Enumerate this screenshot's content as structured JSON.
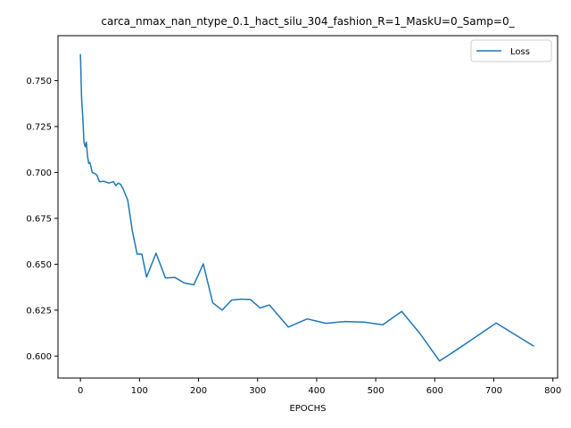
{
  "chart_data": {
    "type": "line",
    "title": "carca_nmax_nan_ntype_0.1_hact_silu_304_fashion_R=1_MaskU=0_Samp=0_",
    "xlabel": "EPOCHS",
    "ylabel": "",
    "xlim": [
      -38,
      808
    ],
    "ylim": [
      0.588,
      0.7745
    ],
    "xticks": [
      0,
      100,
      200,
      300,
      400,
      500,
      600,
      700,
      800
    ],
    "yticks": [
      0.6,
      0.625,
      0.65,
      0.675,
      0.7,
      0.725,
      0.75
    ],
    "ytick_labels": [
      "0.600",
      "0.625",
      "0.650",
      "0.675",
      "0.700",
      "0.725",
      "0.750"
    ],
    "grid": false,
    "legend_position": "upper right",
    "colors": {
      "series": "#1f77b4",
      "axis": "#000000",
      "legend_border": "#cccccc"
    },
    "series": [
      {
        "name": "Loss",
        "x": [
          0,
          1,
          2,
          4,
          6,
          8,
          10,
          12,
          14,
          16,
          20,
          24,
          28,
          32,
          40,
          48,
          56,
          60,
          64,
          68,
          72,
          80,
          88,
          96,
          104,
          112,
          128,
          144,
          160,
          176,
          192,
          208,
          224,
          240,
          256,
          272,
          288,
          304,
          320,
          352,
          384,
          416,
          448,
          480,
          512,
          544,
          576,
          608,
          640,
          672,
          704,
          768
        ],
        "values": [
          0.7645,
          0.752,
          0.74,
          0.73,
          0.7165,
          0.714,
          0.7165,
          0.709,
          0.705,
          0.7055,
          0.7,
          0.6995,
          0.6985,
          0.695,
          0.6952,
          0.6942,
          0.695,
          0.6928,
          0.6942,
          0.6935,
          0.6912,
          0.685,
          0.668,
          0.6555,
          0.6555,
          0.643,
          0.656,
          0.6425,
          0.6428,
          0.6398,
          0.6388,
          0.6502,
          0.629,
          0.625,
          0.6305,
          0.631,
          0.6308,
          0.6262,
          0.6278,
          0.6158,
          0.6202,
          0.6178,
          0.6188,
          0.6185,
          0.617,
          0.6243,
          0.6118,
          0.5973,
          0.604,
          0.611,
          0.618,
          0.6053
        ]
      }
    ]
  }
}
